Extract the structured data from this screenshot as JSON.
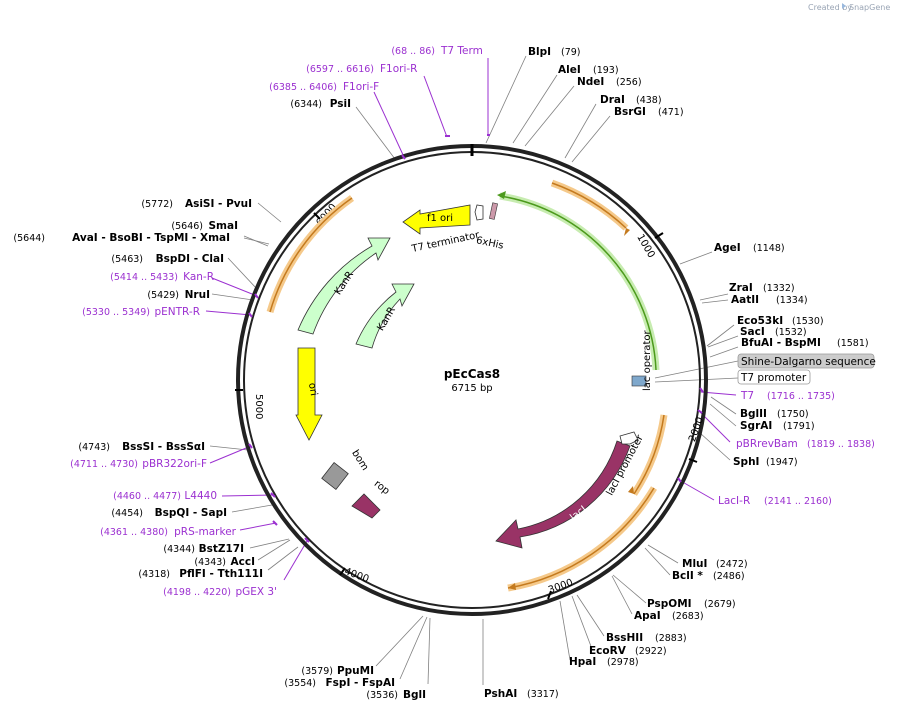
{
  "brand": {
    "created_by": "Created by",
    "product": "SnapGene"
  },
  "plasmid": {
    "name": "pEcCas8",
    "size": "6715 bp"
  },
  "ticks": [
    "1000",
    "2000",
    "3000",
    "4000",
    "5000",
    "6000"
  ],
  "features": {
    "f1_ori": "f1 ori",
    "t7_terminator": "T7 terminator",
    "his6": "6xHis",
    "kanr_outer": "KanR",
    "kanr_inner": "KanR",
    "ori": "ori",
    "bom": "bom",
    "rop": "rop",
    "lac_operator": "lac operator",
    "laci_promoter": "lacI promoter",
    "laci": "lacI"
  },
  "boxed": {
    "shine_dalgarno": "Shine-Dalgarno sequence",
    "t7_promoter": "T7 promoter"
  },
  "sites": {
    "blpi": {
      "name": "BlpI",
      "pos": "(79)"
    },
    "alei": {
      "name": "AleI",
      "pos": "(193)"
    },
    "ndei": {
      "name": "NdeI",
      "pos": "(256)"
    },
    "drai": {
      "name": "DraI",
      "pos": "(438)"
    },
    "bsrgi": {
      "name": "BsrGI",
      "pos": "(471)"
    },
    "agei": {
      "name": "AgeI",
      "pos": "(1148)"
    },
    "zrai": {
      "name": "ZraI",
      "pos": "(1332)"
    },
    "aatii": {
      "name": "AatII",
      "pos": "(1334)"
    },
    "eco53ki": {
      "name": "Eco53kI",
      "pos": "(1530)"
    },
    "saci": {
      "name": "SacI",
      "pos": "(1532)"
    },
    "bfuai": {
      "name": "BfuAI - BspMI",
      "pos": "(1581)"
    },
    "bglii": {
      "name": "BglII",
      "pos": "(1750)"
    },
    "sgrai": {
      "name": "SgrAI",
      "pos": "(1791)"
    },
    "sphi": {
      "name": "SphI",
      "pos": "(1947)"
    },
    "mlui": {
      "name": "MluI",
      "pos": "(2472)"
    },
    "bcli": {
      "name": "BclI *",
      "pos": "(2486)"
    },
    "pspomi": {
      "name": "PspOMI",
      "pos": "(2679)"
    },
    "apai": {
      "name": "ApaI",
      "pos": "(2683)"
    },
    "bsshii": {
      "name": "BssHII",
      "pos": "(2883)"
    },
    "ecorv": {
      "name": "EcoRV",
      "pos": "(2922)"
    },
    "hpai": {
      "name": "HpaI",
      "pos": "(2978)"
    },
    "pshai": {
      "name": "PshAI",
      "pos": "(3317)"
    },
    "bgli": {
      "name": "BglI",
      "pos": "(3536)"
    },
    "fspi": {
      "name": "FspI - FspAI",
      "pos": "(3554)"
    },
    "ppumi": {
      "name": "PpuMI",
      "pos": "(3579)"
    },
    "pflfi": {
      "name": "PflFI - Tth111I",
      "pos": "(4318)"
    },
    "acci": {
      "name": "AccI",
      "pos": "(4343)"
    },
    "bstz17i": {
      "name": "BstZ17I",
      "pos": "(4344)"
    },
    "bspqi": {
      "name": "BspQI - SapI",
      "pos": "(4454)"
    },
    "bsssi": {
      "name": "BssSI - BssSαI",
      "pos": "(4743)"
    },
    "nrui": {
      "name": "NruI",
      "pos": "(5429)"
    },
    "bspdi": {
      "name": "BspDI - ClaI",
      "pos": "(5463)"
    },
    "avai": {
      "name": "AvaI - BsoBI - TspMI - XmaI",
      "pos": "(5644)"
    },
    "smai": {
      "name": "SmaI",
      "pos": "(5646)"
    },
    "asisi": {
      "name": "AsiSI - PvuI",
      "pos": "(5772)"
    },
    "psii": {
      "name": "PsiI",
      "pos": "(6344)"
    }
  },
  "primers": {
    "t7term": {
      "name": "T7 Term",
      "range": "(68 .. 86)"
    },
    "f1ori_r": {
      "name": "F1ori-R",
      "range": "(6597 .. 6616)"
    },
    "f1ori_f": {
      "name": "F1ori-F",
      "range": "(6385 .. 6406)"
    },
    "t7": {
      "name": "T7",
      "range": "(1716 .. 1735)"
    },
    "pbrrevbam": {
      "name": "pBRrevBam",
      "range": "(1819 .. 1838)"
    },
    "laci_r": {
      "name": "LacI-R",
      "range": "(2141 .. 2160)"
    },
    "kan_r": {
      "name": "Kan-R",
      "range": "(5414 .. 5433)"
    },
    "pentr_r": {
      "name": "pENTR-R",
      "range": "(5330 .. 5349)"
    },
    "pbr322ori_f": {
      "name": "pBR322ori-F",
      "range": "(4711 .. 4730)"
    },
    "l4440": {
      "name": "L4440",
      "range": "(4460 .. 4477)"
    },
    "prs_marker": {
      "name": "pRS-marker",
      "range": "(4361 .. 4380)"
    },
    "pgex3": {
      "name": "pGEX 3'",
      "range": "(4198 .. 4220)"
    }
  },
  "colors": {
    "backbone": "#222222",
    "enzyme_line": "#808080",
    "primer": "#9b30d0",
    "orf_glow": "#f5c98a",
    "orf_line": "#c47a1e",
    "green_glow": "#c7ecb0",
    "green_line": "#4c9a1c",
    "f1_ori": "#ffff00",
    "kanr": "#ccffcc",
    "ori": "#ffff00",
    "bom": "#999999",
    "rop": "#993366",
    "laci": "#993366",
    "his6": "#cc99aa"
  }
}
